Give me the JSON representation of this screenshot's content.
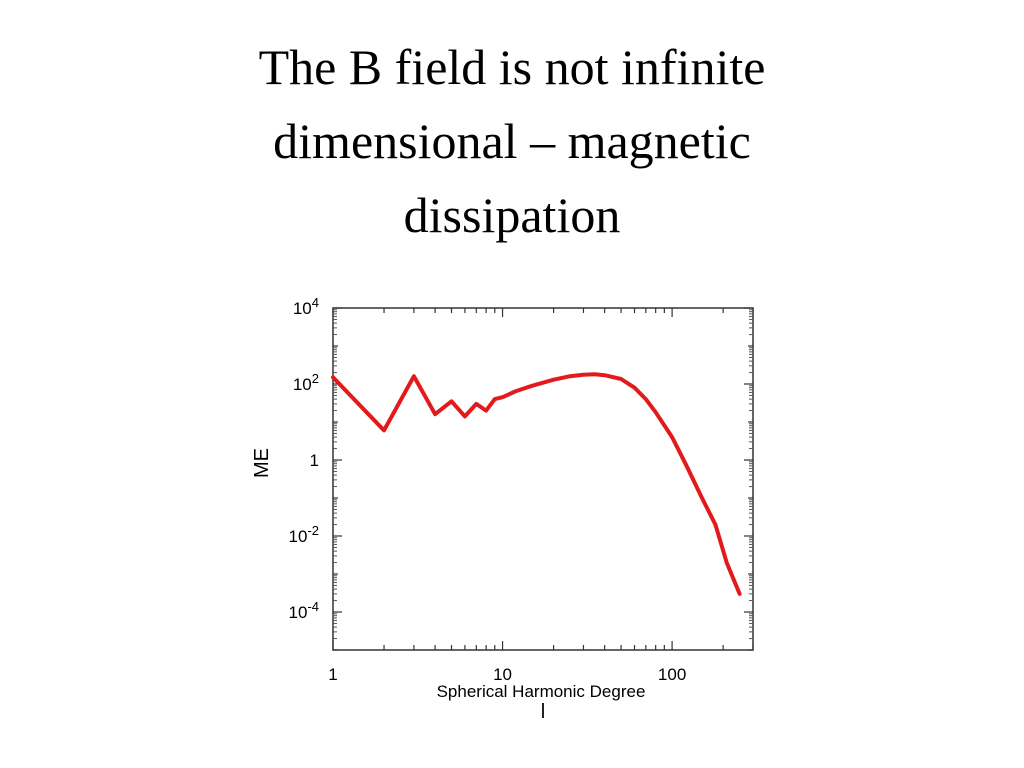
{
  "slide": {
    "title_lines": [
      "The B field is not infinite",
      "dimensional – magnetic",
      "dissipation"
    ]
  },
  "chart_data": {
    "type": "line",
    "title": "",
    "xlabel": "Spherical Harmonic Degree",
    "xlabel_symbol": "l",
    "ylabel": "ME",
    "xscale": "log",
    "yscale": "log",
    "xlim": [
      1,
      300
    ],
    "ylim": [
      1e-05,
      10000
    ],
    "grid": false,
    "x_ticks": [
      {
        "value": 1,
        "label": "1"
      },
      {
        "value": 10,
        "label": "10"
      },
      {
        "value": 100,
        "label": "100"
      }
    ],
    "y_ticks": [
      {
        "value": 10000,
        "base": "10",
        "exp": "4"
      },
      {
        "value": 100,
        "base": "10",
        "exp": "2"
      },
      {
        "value": 1,
        "base": "1",
        "exp": ""
      },
      {
        "value": 0.01,
        "base": "10",
        "exp": "-2"
      },
      {
        "value": 0.0001,
        "base": "10",
        "exp": "-4"
      }
    ],
    "series": [
      {
        "color": "#e31a1c",
        "x": [
          1,
          2,
          3,
          4,
          5,
          6,
          7,
          8,
          9,
          10,
          12,
          15,
          20,
          25,
          30,
          35,
          40,
          50,
          60,
          70,
          80,
          100,
          120,
          150,
          180,
          210,
          250
        ],
        "y": [
          150,
          6,
          160,
          16,
          35,
          14,
          30,
          20,
          40,
          45,
          65,
          90,
          130,
          160,
          175,
          180,
          170,
          135,
          80,
          40,
          18,
          4,
          0.8,
          0.1,
          0.02,
          0.002,
          0.0003
        ]
      }
    ]
  }
}
